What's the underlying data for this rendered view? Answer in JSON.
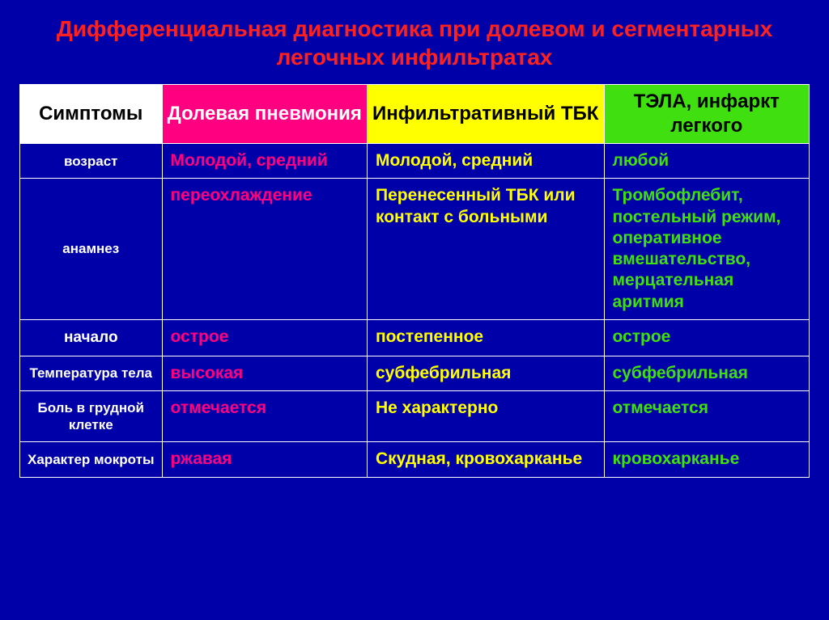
{
  "title": "Дифференциальная диагностика при долевом и сегментарных легочных инфильтратах",
  "colors": {
    "page_bg": "#0000a8",
    "title_color": "#ff2020",
    "border_color": "#ffffff",
    "header_sym_bg": "#ffffff",
    "header_sym_fg": "#000000",
    "header_pneu_bg": "#ff0080",
    "header_pneu_fg": "#ffffff",
    "header_tbk_bg": "#ffff00",
    "header_tbk_fg": "#000000",
    "header_tela_bg": "#40e010",
    "header_tela_fg": "#000000",
    "col_pneu_fg": "#ff0080",
    "col_tbk_fg": "#ffff00",
    "col_tela_fg": "#40e010",
    "rowlabel_fg": "#ffffff"
  },
  "typography": {
    "title_fontsize": 28,
    "header_fontsize": 24,
    "cell_fontsize": 21,
    "rowlabel_fontsize": 19,
    "rowlabel_small_fontsize": 17,
    "font_weight": "bold",
    "font_family": "Arial"
  },
  "table": {
    "type": "table",
    "column_widths_pct": [
      18,
      26,
      30,
      26
    ],
    "headers": {
      "sym": "Симптомы",
      "pneu": "Долевая пневмония",
      "tbk": "Инфильтративный ТБК",
      "tela": "ТЭЛА, инфаркт легкого"
    },
    "rows": [
      {
        "label": "возраст",
        "label_small": true,
        "pneu": "Молодой, средний",
        "tbk": "Молодой, средний",
        "tela": "любой"
      },
      {
        "label": "анамнез",
        "label_small": true,
        "pneu": "переохлаждение",
        "tbk": "Перенесенный ТБК или контакт с больными",
        "tela": "Тромбофлебит, постельный режим, оперативное вмешательство, мерцательная аритмия"
      },
      {
        "label": "начало",
        "label_small": false,
        "pneu": "острое",
        "tbk": "постепенное",
        "tela": "острое"
      },
      {
        "label": "Температура тела",
        "label_small": true,
        "pneu": "высокая",
        "tbk": "субфебрильная",
        "tela": "субфебрильная"
      },
      {
        "label": "Боль в грудной клетке",
        "label_small": true,
        "pneu": "отмечается",
        "tbk": "Не характерно",
        "tela": "отмечается"
      },
      {
        "label": "Характер мокроты",
        "label_small": true,
        "pneu": "ржавая",
        "tbk": "Скудная, кровохарканье",
        "tela": "кровохарканье"
      }
    ]
  }
}
